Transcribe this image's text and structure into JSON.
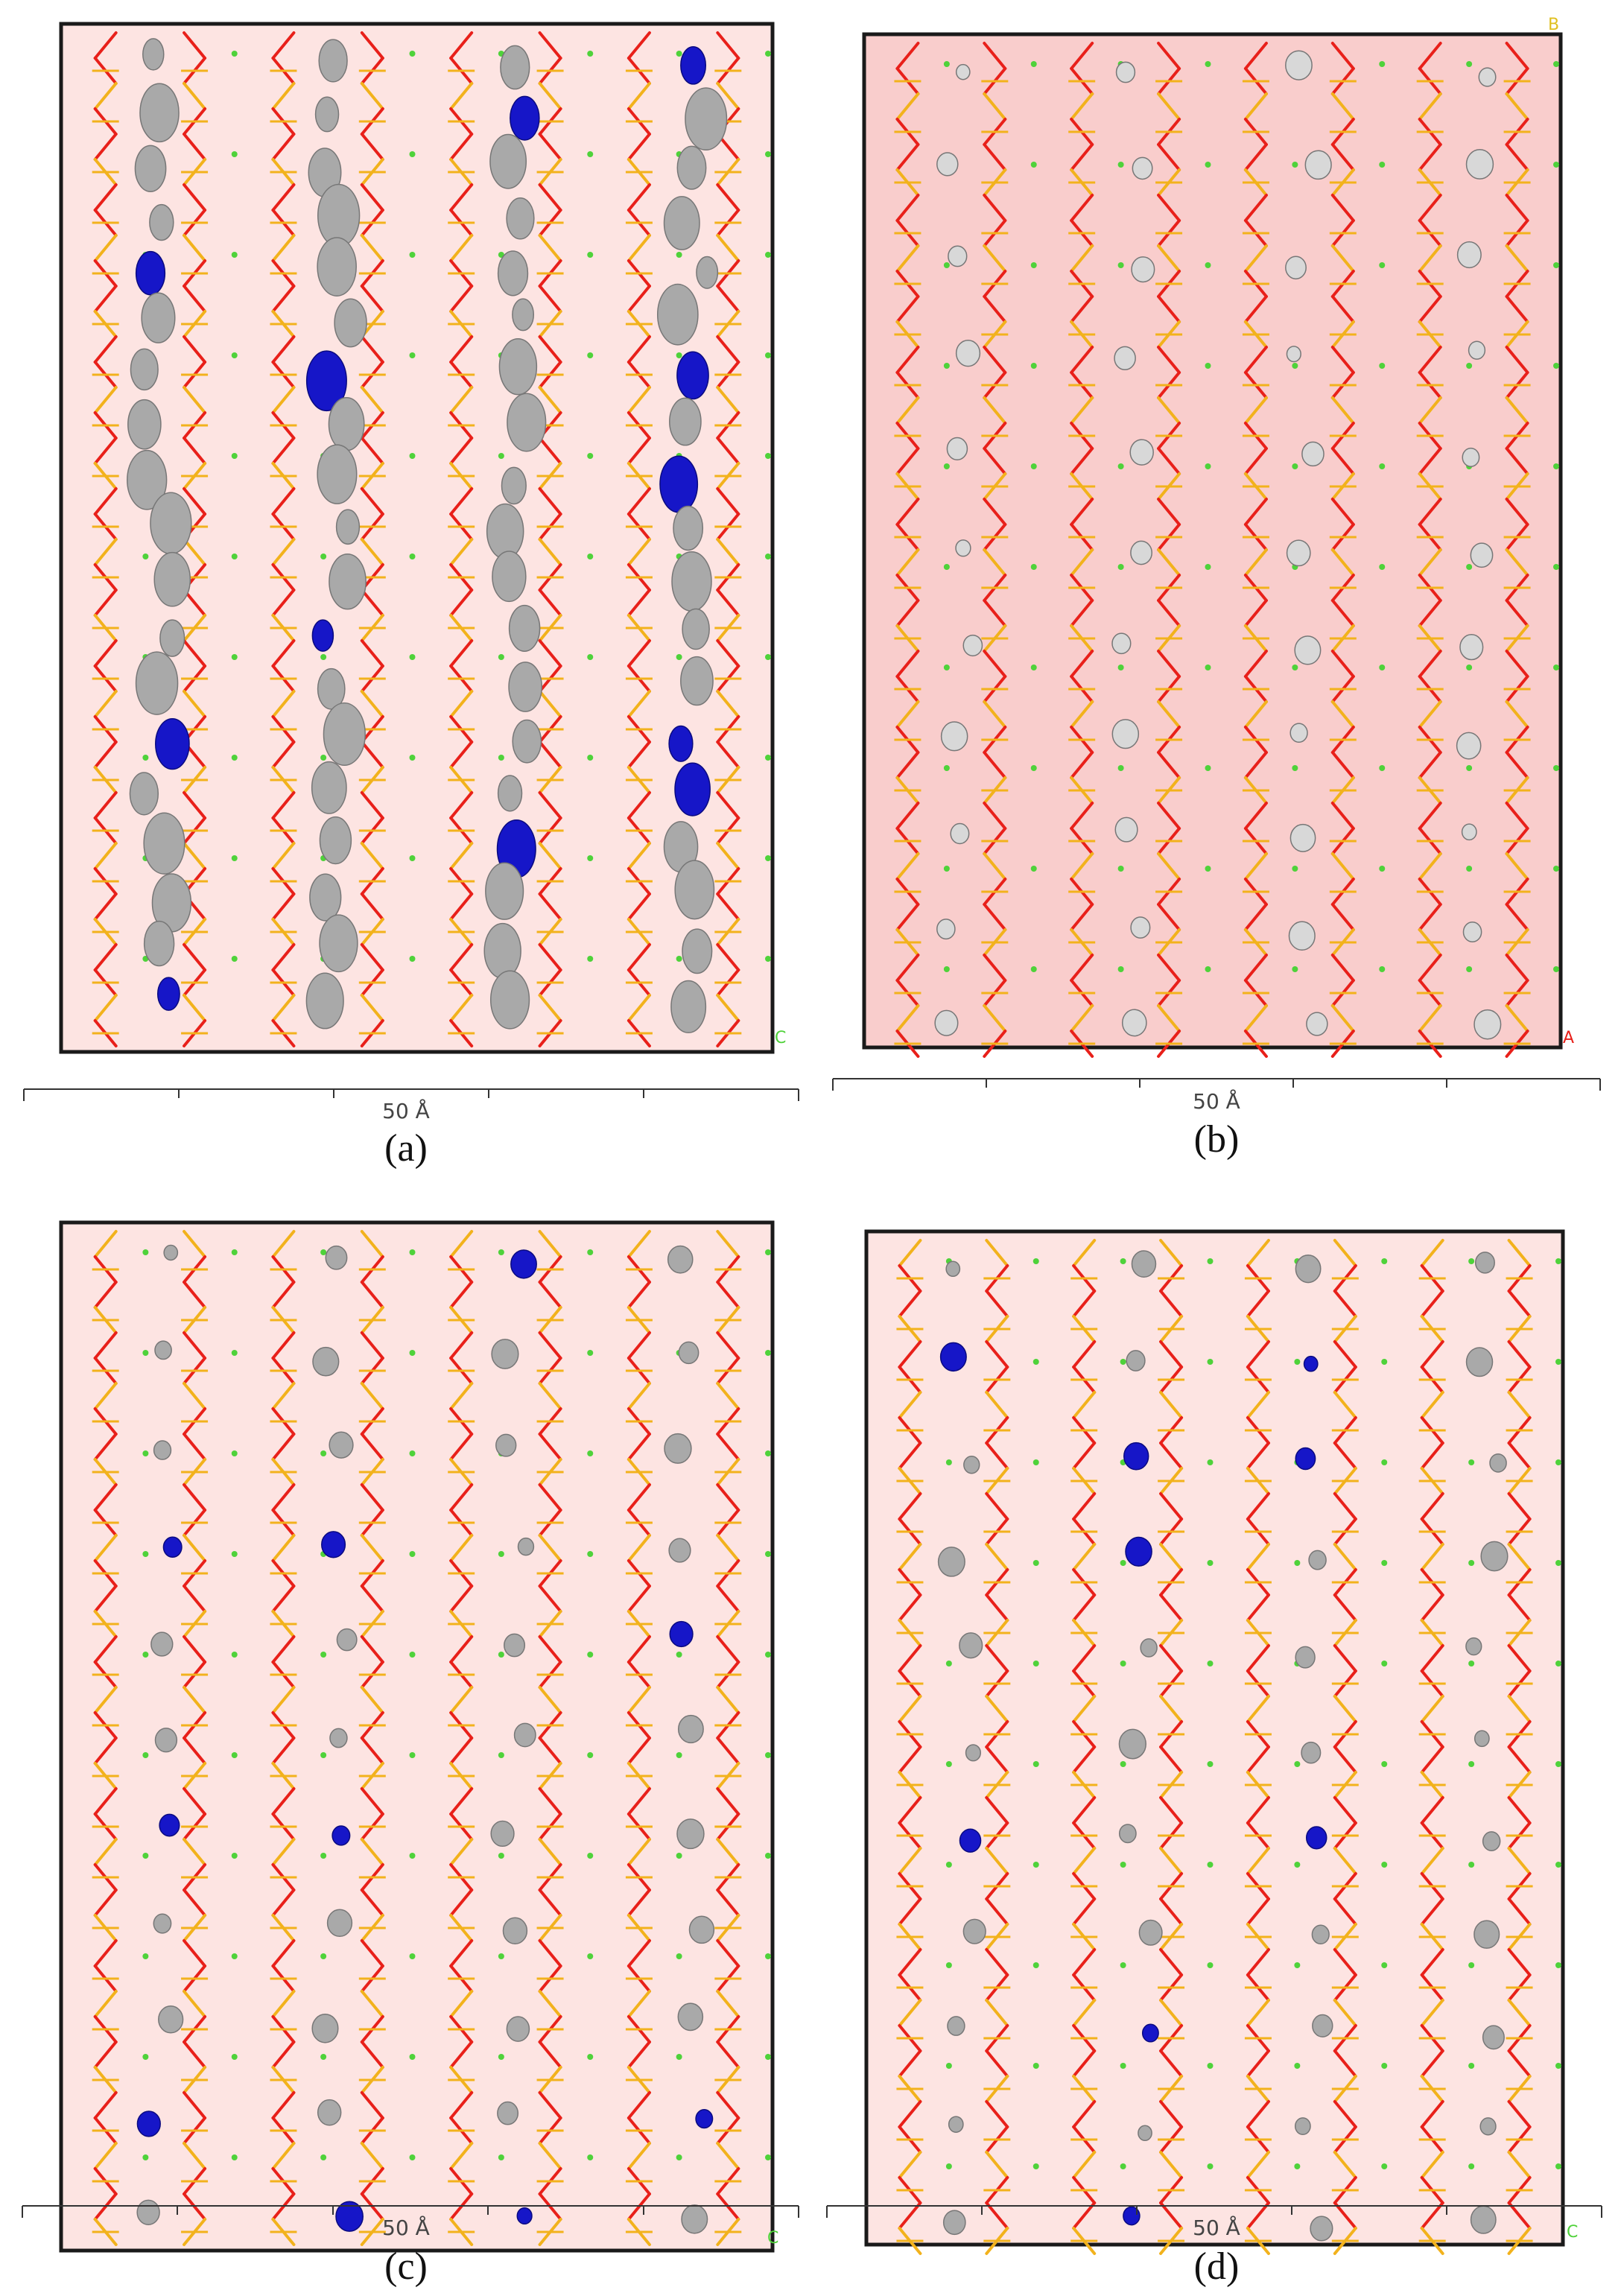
{
  "panels": [
    {
      "id": "a",
      "caption": "(a)",
      "scale_label": "50 Å",
      "background": "#fde4e2",
      "large_blobs": true,
      "corner_labels": [
        "C"
      ]
    },
    {
      "id": "b",
      "caption": "(b)",
      "scale_label": "50 Å",
      "background": "#f9cdcc",
      "large_blobs": false,
      "corner_labels": [
        "B",
        "A"
      ]
    },
    {
      "id": "c",
      "caption": "(c)",
      "scale_label": "50 Å",
      "background": "#fde4e2",
      "large_blobs": false,
      "corner_labels": [
        "C"
      ]
    },
    {
      "id": "d",
      "caption": "(d)",
      "scale_label": "50 Å",
      "background": "#fde4e2",
      "large_blobs": false,
      "corner_labels": [
        "C"
      ]
    }
  ],
  "colors": {
    "frame": "#1a1a1a",
    "bond_o": "#e8201a",
    "bond_s": "#f2b21c",
    "atom_green": "#4fd23a",
    "blob_gray": "#a9a9a9",
    "blob_blue": "#1616c8"
  }
}
